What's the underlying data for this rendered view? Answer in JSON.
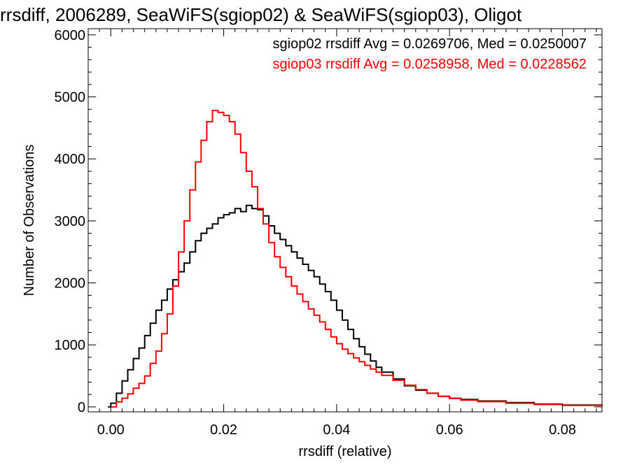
{
  "chart_data": {
    "type": "line",
    "title": "rrsdiff, 2006289, SeaWiFS(sgiop02) & SeaWiFS(sgiop03), Oligot",
    "xlabel": "rrsdiff (relative)",
    "ylabel": "Number of Observations",
    "xlim": [
      -0.004,
      0.087
    ],
    "ylim": [
      -80,
      6100
    ],
    "x_ticks": [
      0.0,
      0.02,
      0.04,
      0.06,
      0.08
    ],
    "x_tick_labels": [
      "0.00",
      "0.02",
      "0.04",
      "0.06",
      "0.08"
    ],
    "y_ticks": [
      0,
      1000,
      2000,
      3000,
      4000,
      5000,
      6000
    ],
    "y_tick_labels": [
      "0",
      "1000",
      "2000",
      "3000",
      "4000",
      "5000",
      "6000"
    ],
    "grid": false,
    "legend_position": "top-right",
    "series": [
      {
        "name": "sgiop02",
        "legend_text": "sgiop02 rrsdiff Avg = 0.0269706, Med = 0.0250007",
        "color": "#000000",
        "step": true,
        "points": [
          [
            -0.0005,
            0
          ],
          [
            0.0,
            60
          ],
          [
            0.001,
            220
          ],
          [
            0.002,
            420
          ],
          [
            0.003,
            600
          ],
          [
            0.004,
            780
          ],
          [
            0.005,
            950
          ],
          [
            0.006,
            1150
          ],
          [
            0.007,
            1350
          ],
          [
            0.008,
            1560
          ],
          [
            0.009,
            1720
          ],
          [
            0.01,
            1900
          ],
          [
            0.011,
            2050
          ],
          [
            0.012,
            2180
          ],
          [
            0.013,
            2320
          ],
          [
            0.014,
            2500
          ],
          [
            0.015,
            2680
          ],
          [
            0.016,
            2800
          ],
          [
            0.017,
            2880
          ],
          [
            0.018,
            2950
          ],
          [
            0.019,
            3050
          ],
          [
            0.02,
            3100
          ],
          [
            0.021,
            3130
          ],
          [
            0.022,
            3200
          ],
          [
            0.023,
            3150
          ],
          [
            0.024,
            3250
          ],
          [
            0.025,
            3200
          ],
          [
            0.026,
            3180
          ],
          [
            0.027,
            3080
          ],
          [
            0.028,
            2920
          ],
          [
            0.029,
            2800
          ],
          [
            0.03,
            2700
          ],
          [
            0.031,
            2600
          ],
          [
            0.032,
            2500
          ],
          [
            0.033,
            2400
          ],
          [
            0.034,
            2300
          ],
          [
            0.035,
            2200
          ],
          [
            0.036,
            2100
          ],
          [
            0.037,
            1980
          ],
          [
            0.038,
            1860
          ],
          [
            0.039,
            1720
          ],
          [
            0.04,
            1560
          ],
          [
            0.041,
            1400
          ],
          [
            0.042,
            1250
          ],
          [
            0.043,
            1100
          ],
          [
            0.044,
            970
          ],
          [
            0.045,
            850
          ],
          [
            0.046,
            740
          ],
          [
            0.047,
            640
          ],
          [
            0.048,
            560
          ],
          [
            0.05,
            450
          ],
          [
            0.052,
            340
          ],
          [
            0.054,
            270
          ],
          [
            0.056,
            220
          ],
          [
            0.058,
            170
          ],
          [
            0.06,
            140
          ],
          [
            0.062,
            120
          ],
          [
            0.065,
            95
          ],
          [
            0.07,
            70
          ],
          [
            0.075,
            45
          ],
          [
            0.08,
            30
          ],
          [
            0.087,
            20
          ]
        ]
      },
      {
        "name": "sgiop03",
        "legend_text": "sgiop03 rrsdiff Avg = 0.0258958, Med = 0.0228562",
        "color": "#ff0000",
        "step": true,
        "points": [
          [
            0.0,
            0
          ],
          [
            0.001,
            80
          ],
          [
            0.002,
            140
          ],
          [
            0.003,
            210
          ],
          [
            0.004,
            300
          ],
          [
            0.005,
            380
          ],
          [
            0.006,
            500
          ],
          [
            0.007,
            700
          ],
          [
            0.008,
            900
          ],
          [
            0.009,
            1180
          ],
          [
            0.01,
            1500
          ],
          [
            0.011,
            1950
          ],
          [
            0.012,
            2500
          ],
          [
            0.013,
            3000
          ],
          [
            0.014,
            3500
          ],
          [
            0.015,
            3950
          ],
          [
            0.016,
            4300
          ],
          [
            0.017,
            4600
          ],
          [
            0.018,
            4780
          ],
          [
            0.019,
            4750
          ],
          [
            0.02,
            4700
          ],
          [
            0.021,
            4600
          ],
          [
            0.022,
            4400
          ],
          [
            0.023,
            4100
          ],
          [
            0.024,
            3800
          ],
          [
            0.025,
            3550
          ],
          [
            0.026,
            3200
          ],
          [
            0.027,
            2950
          ],
          [
            0.028,
            2650
          ],
          [
            0.029,
            2420
          ],
          [
            0.03,
            2250
          ],
          [
            0.031,
            2100
          ],
          [
            0.032,
            1950
          ],
          [
            0.033,
            1820
          ],
          [
            0.034,
            1700
          ],
          [
            0.035,
            1580
          ],
          [
            0.036,
            1480
          ],
          [
            0.037,
            1370
          ],
          [
            0.038,
            1250
          ],
          [
            0.039,
            1130
          ],
          [
            0.04,
            1020
          ],
          [
            0.041,
            930
          ],
          [
            0.042,
            860
          ],
          [
            0.043,
            790
          ],
          [
            0.044,
            730
          ],
          [
            0.045,
            670
          ],
          [
            0.046,
            610
          ],
          [
            0.047,
            560
          ],
          [
            0.048,
            510
          ],
          [
            0.05,
            430
          ],
          [
            0.052,
            350
          ],
          [
            0.054,
            280
          ],
          [
            0.056,
            220
          ],
          [
            0.058,
            170
          ],
          [
            0.06,
            135
          ],
          [
            0.062,
            110
          ],
          [
            0.065,
            85
          ],
          [
            0.07,
            60
          ],
          [
            0.075,
            40
          ],
          [
            0.08,
            25
          ],
          [
            0.087,
            15
          ]
        ]
      }
    ]
  }
}
